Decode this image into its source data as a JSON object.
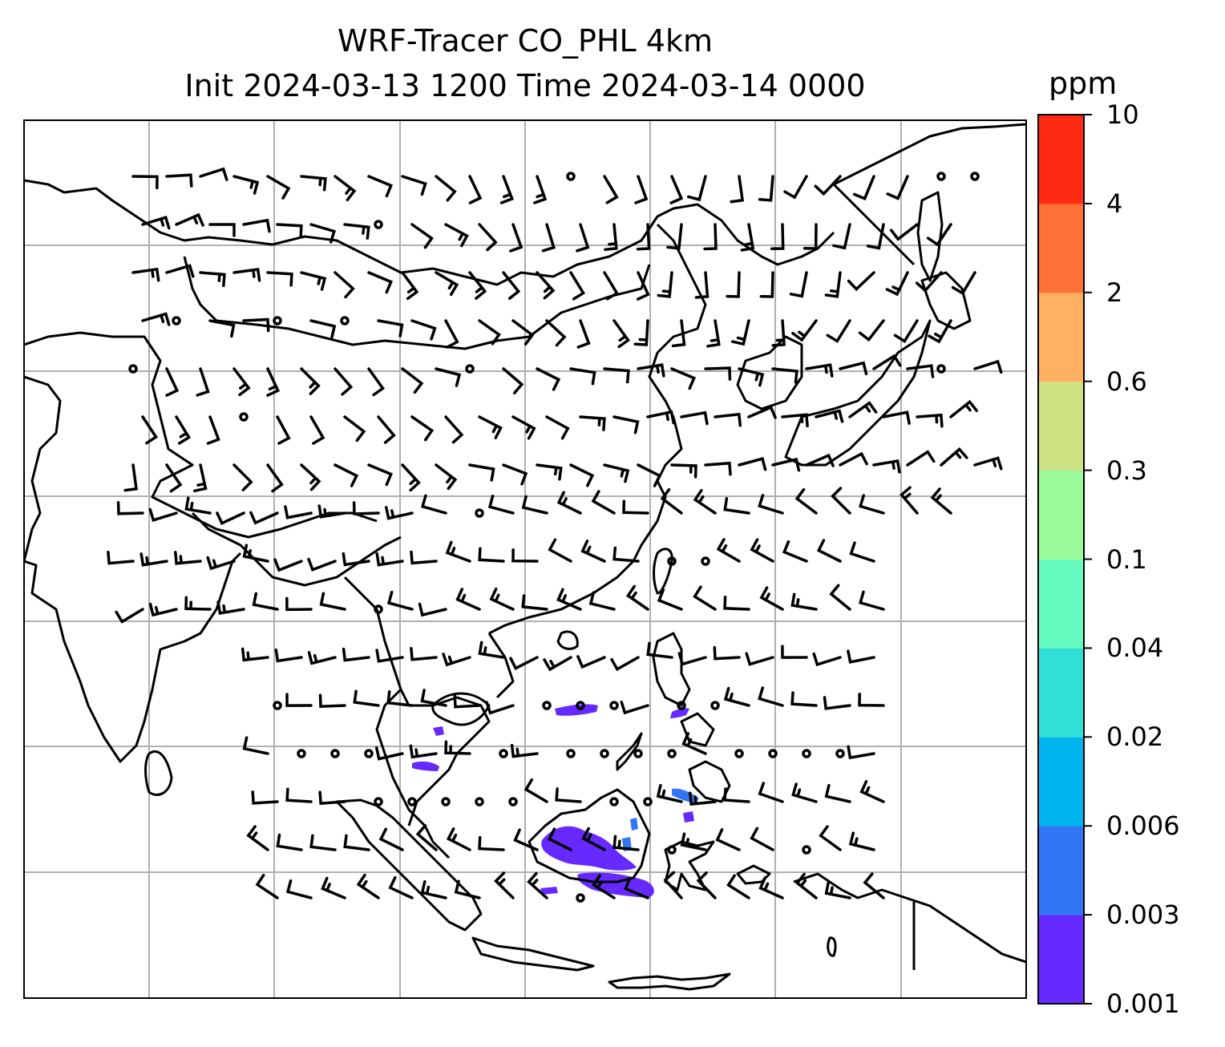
{
  "title": {
    "line1": "WRF-Tracer CO_PHL 4km",
    "line2": "Init 2024-03-13 1200 Time 2024-03-14 0000"
  },
  "colorbar": {
    "unit": "ppm",
    "levels": [
      "0.001",
      "0.003",
      "0.006",
      "0.02",
      "0.04",
      "0.1",
      "0.3",
      "0.6",
      "2",
      "4",
      "10"
    ],
    "colors": [
      "#6629ff",
      "#3376f5",
      "#00b4ef",
      "#30e0d6",
      "#66fbc1",
      "#9bfa9a",
      "#cfe283",
      "#ffb060",
      "#ff7137",
      "#ff2a12"
    ]
  },
  "map": {
    "region": "South-East and East Asia",
    "colors": {
      "coastline": "#000000",
      "grid": "#b0b0b0",
      "barb": "#000000",
      "tracer": "#6629ff",
      "tracer_edge": "#3376f5"
    }
  }
}
